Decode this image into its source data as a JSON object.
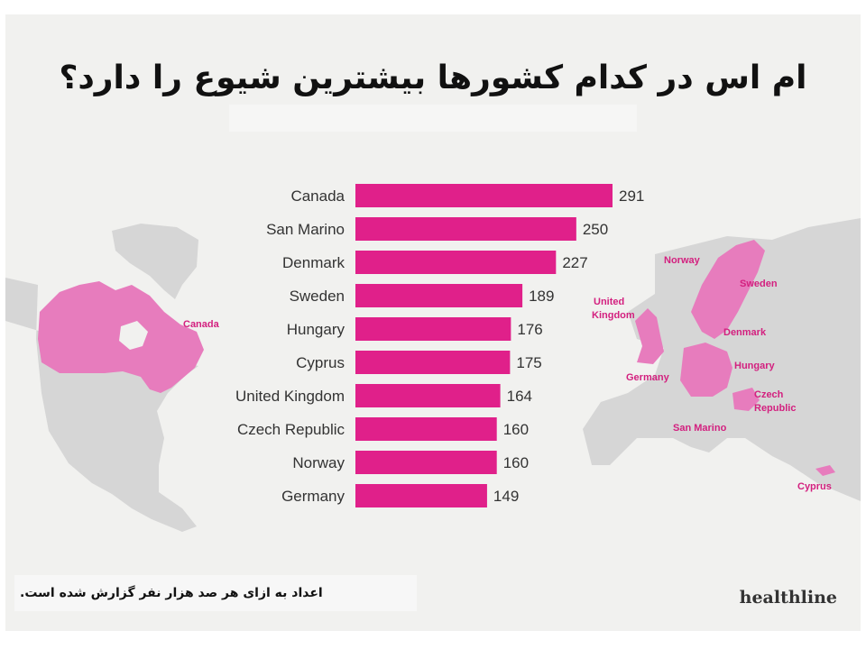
{
  "title": "ام اس در کدام کشورها بیشترین شیوع را دارد؟",
  "footnote": "اعداد به ازای هر صد هزار نفر گزارش شده است.",
  "brand": "healthline",
  "colors": {
    "bar": "#e0208a",
    "map_highlight": "#e77cbd",
    "map_land": "#d6d6d6",
    "label": "#d3207f"
  },
  "map_labels": {
    "canada": "Canada",
    "norway": "Norway",
    "sweden": "Sweden",
    "united_kingdom_1": "United",
    "united_kingdom_2": "Kingdom",
    "denmark": "Denmark",
    "germany": "Germany",
    "hungary": "Hungary",
    "czech_1": "Czech",
    "czech_2": "Republic",
    "san_marino": "San Marino",
    "cyprus": "Cyprus"
  },
  "chart_data": {
    "type": "bar",
    "orientation": "horizontal",
    "categories": [
      "Canada",
      "San Marino",
      "Denmark",
      "Sweden",
      "Hungary",
      "Cyprus",
      "United Kingdom",
      "Czech Republic",
      "Norway",
      "Germany"
    ],
    "values": [
      291,
      250,
      227,
      189,
      176,
      175,
      164,
      160,
      160,
      149
    ],
    "title": "ام اس در کدام کشورها بیشترین شیوع را دارد؟",
    "xlabel": "",
    "ylabel": "",
    "grid": false,
    "legend": "none"
  }
}
